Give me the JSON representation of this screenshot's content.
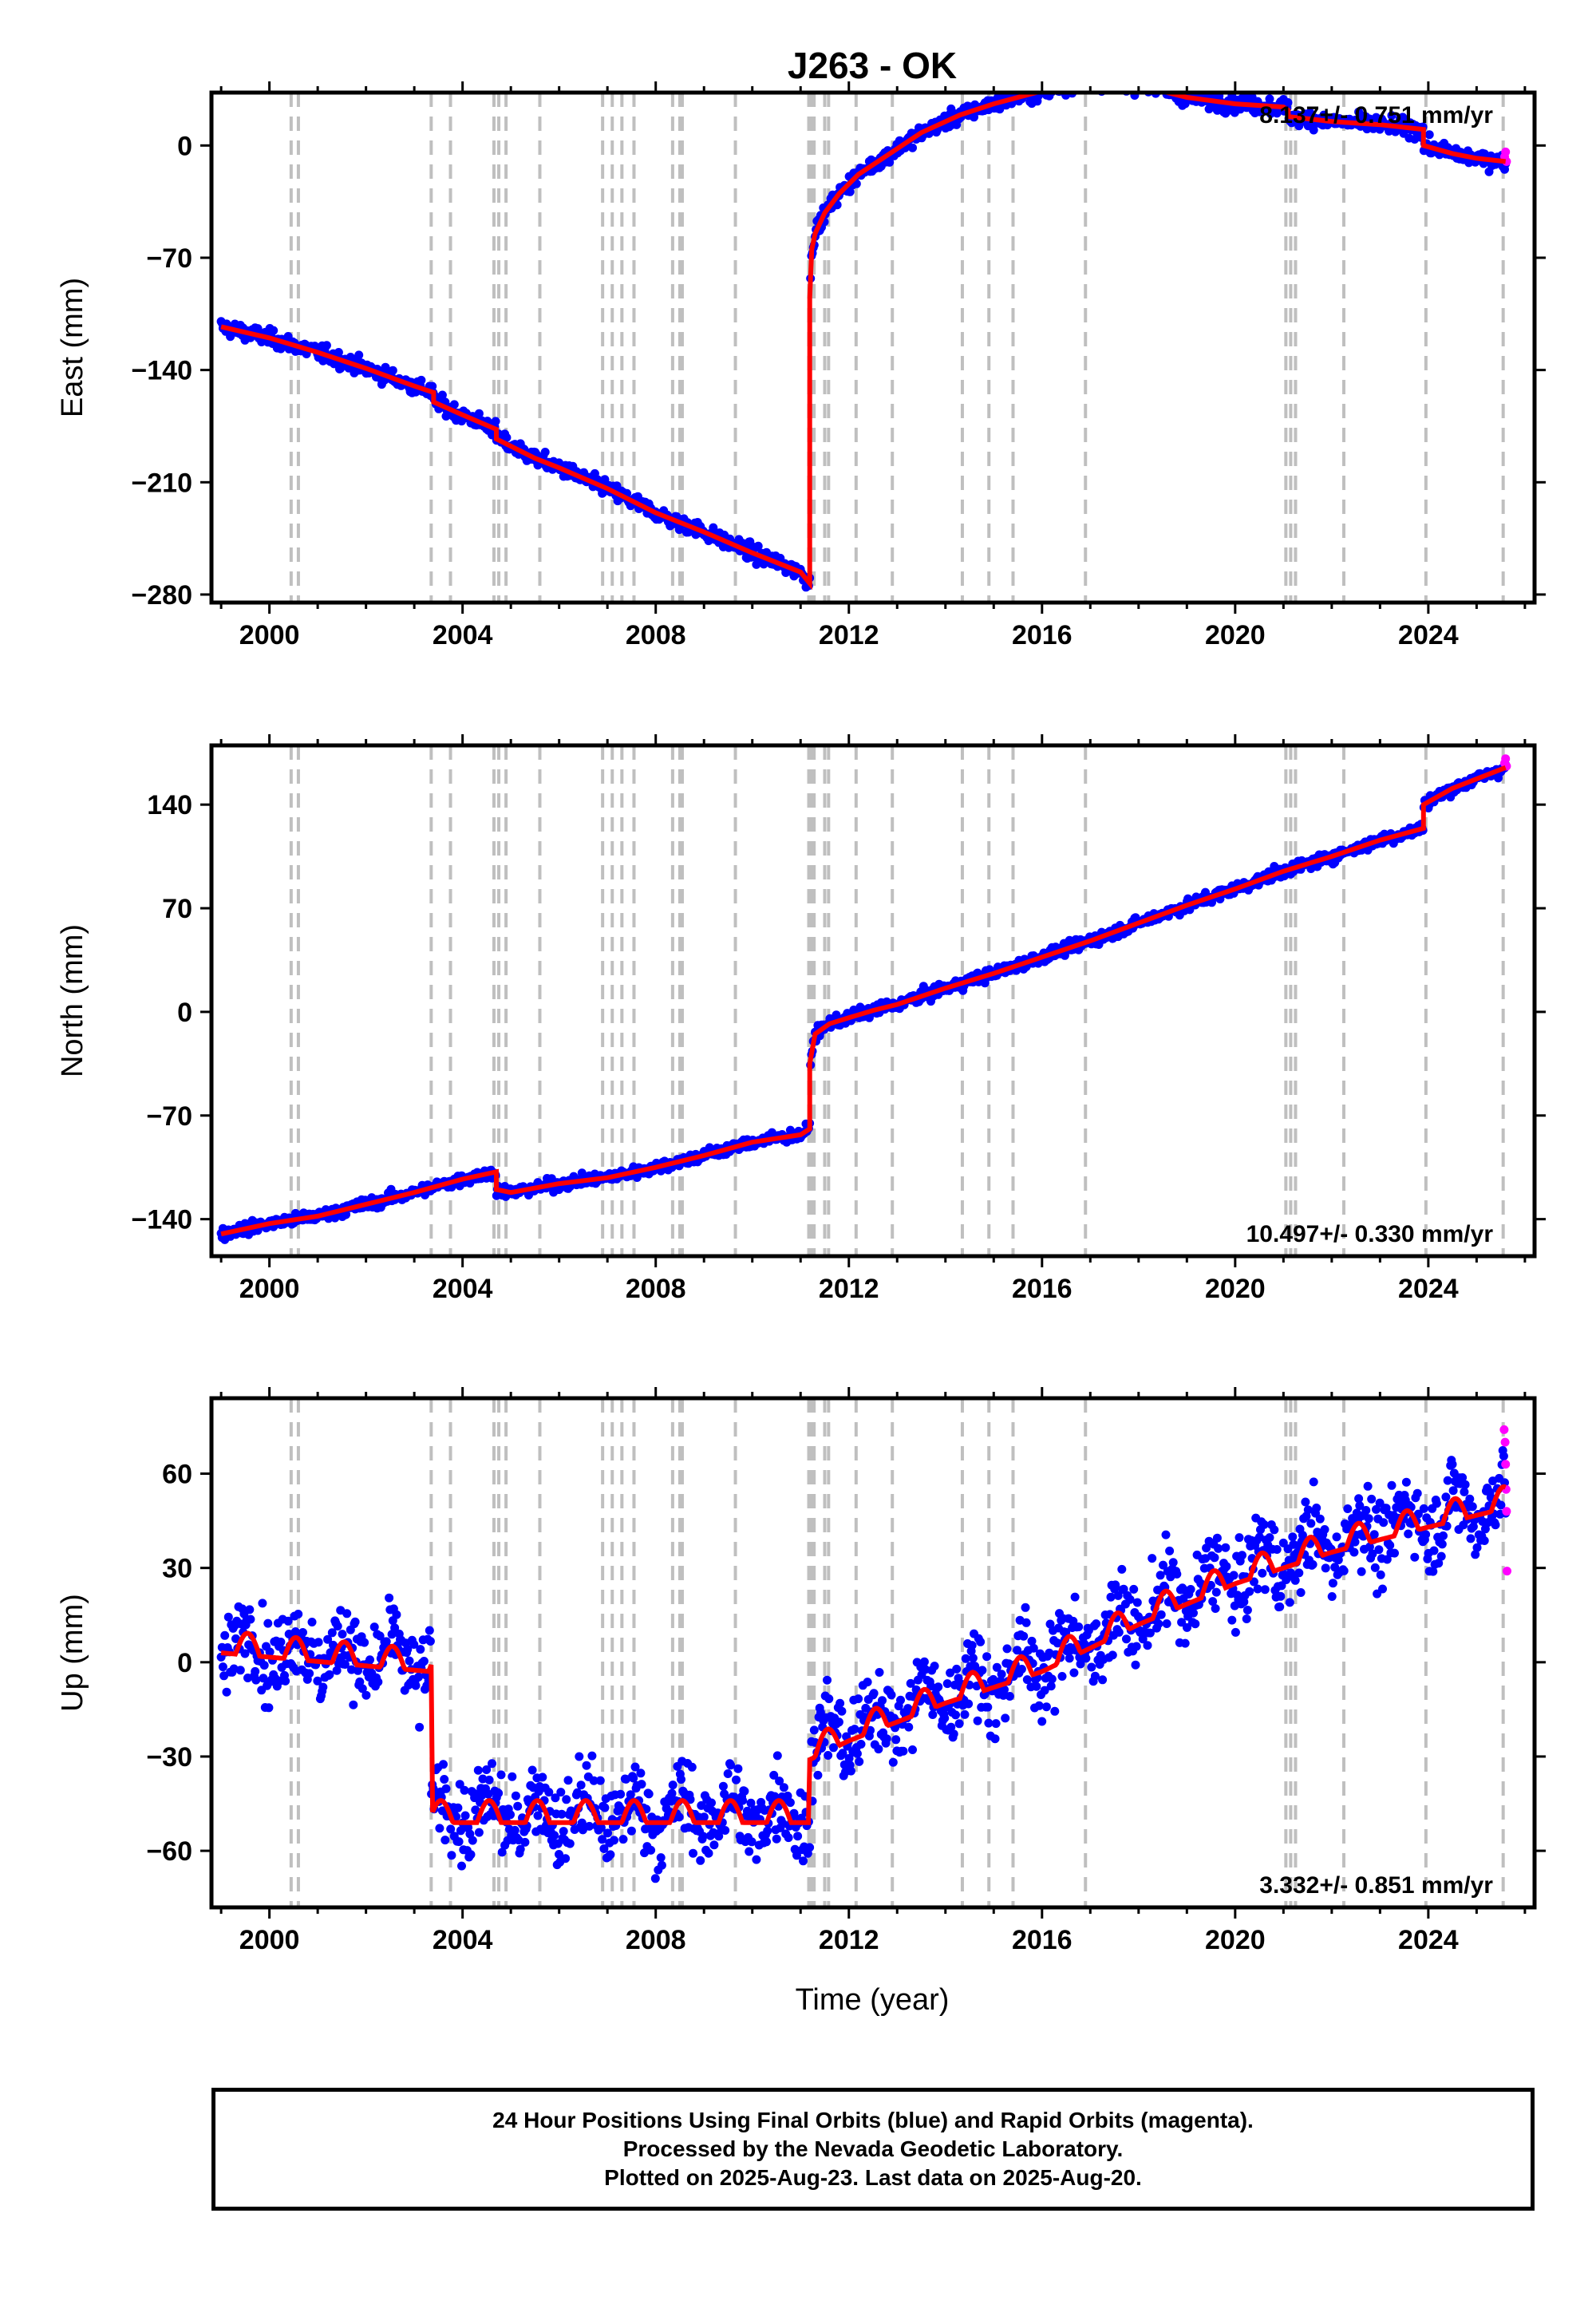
{
  "title": "J263 - OK",
  "xlabel": "Time (year)",
  "colors": {
    "final_orbits": "#0000ff",
    "rapid_orbits": "#ff00ff",
    "model": "#ff0000",
    "steps": "#bfbfbf"
  },
  "notes": [
    "24 Hour Positions Using Final Orbits (blue) and Rapid Orbits (magenta).",
    "Processed by the Nevada Geodetic Laboratory.",
    "Plotted on 2025-Aug-23. Last data on 2025-Aug-20."
  ],
  "chart_data": [
    {
      "type": "scatter",
      "ylabel": "East (mm)",
      "velocity": "8.137+/- 0.751 mm/yr",
      "xlim": [
        1998.8,
        2026.2
      ],
      "ylim": [
        -285,
        33
      ],
      "xticks": [
        2000,
        2004,
        2008,
        2012,
        2016,
        2020,
        2024
      ],
      "yticks": [
        -280,
        -210,
        -140,
        -70,
        0
      ],
      "ytick_labels": [
        "−280",
        "−210",
        "−140",
        "−70",
        "0"
      ],
      "model": {
        "x": [
          1999.0,
          2000.0,
          2001.0,
          2002.0,
          2003.0,
          2003.4,
          2003.4,
          2004.0,
          2004.7,
          2004.7,
          2005.5,
          2006.0,
          2007.0,
          2008.0,
          2009.0,
          2010.0,
          2011.0,
          2011.19,
          2011.19,
          2011.23,
          2011.3,
          2011.5,
          2011.8,
          2012.2,
          2012.8,
          2013.5,
          2014.3,
          2015.0,
          2016.0,
          2017.0,
          2018.0,
          2018.6,
          2019.0,
          2020.0,
          2021.0,
          2021.1,
          2021.1,
          2022.0,
          2023.0,
          2023.9,
          2023.9,
          2024.5,
          2025.0,
          2025.6
        ],
        "y": [
          -113,
          -120,
          -129,
          -139,
          -150,
          -154,
          -160,
          -168,
          -177,
          -183,
          -195,
          -201,
          -214,
          -229,
          -241,
          -254,
          -266,
          -273,
          -95,
          -65,
          -55,
          -42,
          -30,
          -18,
          -6,
          8,
          19,
          26,
          34,
          40,
          39,
          33,
          30,
          26,
          24,
          22,
          18,
          15,
          13,
          10,
          0,
          -5,
          -8,
          -10
        ]
      },
      "scatter": {
        "noise": 3.5,
        "rapid_x": [
          2025.58,
          2025.6,
          2025.62
        ],
        "rapid_y": [
          -7,
          -4,
          -10
        ]
      }
    },
    {
      "type": "scatter",
      "ylabel": "North (mm)",
      "velocity": "10.497+/- 0.330 mm/yr",
      "xlim": [
        1998.8,
        2026.2
      ],
      "ylim": [
        -165,
        180
      ],
      "xticks": [
        2000,
        2004,
        2008,
        2012,
        2016,
        2020,
        2024
      ],
      "yticks": [
        -140,
        -70,
        0,
        70,
        140
      ],
      "ytick_labels": [
        "−140",
        "−70",
        "0",
        "70",
        "140"
      ],
      "model": {
        "x": [
          1999.0,
          2000.0,
          2001.0,
          2002.0,
          2003.0,
          2004.0,
          2004.7,
          2004.7,
          2005.0,
          2006.0,
          2007.0,
          2008.0,
          2009.0,
          2010.0,
          2011.0,
          2011.19,
          2011.19,
          2011.3,
          2011.6,
          2012.0,
          2012.5,
          2013.0,
          2014.0,
          2015.0,
          2016.0,
          2017.0,
          2018.0,
          2019.0,
          2020.0,
          2021.0,
          2022.0,
          2023.0,
          2023.9,
          2023.9,
          2024.5,
          2025.6
        ],
        "y": [
          -150,
          -143,
          -138,
          -130,
          -122,
          -113,
          -108,
          -120,
          -122,
          -116,
          -112,
          -105,
          -97,
          -88,
          -83,
          -79,
          -35,
          -15,
          -8,
          -4,
          1,
          5,
          16,
          26,
          37,
          48,
          60,
          72,
          83,
          95,
          105,
          116,
          124,
          140,
          151,
          165
        ]
      },
      "scatter": {
        "noise": 2.8,
        "rapid_x": [
          2025.58,
          2025.6,
          2025.62
        ],
        "rapid_y": [
          168,
          171,
          166
        ]
      }
    },
    {
      "type": "scatter",
      "ylabel": "Up (mm)",
      "velocity": "3.332+/- 0.851 mm/yr",
      "xlim": [
        1998.8,
        2026.2
      ],
      "ylim": [
        -78,
        84
      ],
      "xticks": [
        2000,
        2004,
        2008,
        2012,
        2016,
        2020,
        2024
      ],
      "yticks": [
        -60,
        -30,
        0,
        30,
        60
      ],
      "ytick_labels": [
        "−60",
        "−30",
        "0",
        "30",
        "60"
      ],
      "model": {
        "x": [
          1999.0,
          2003.35,
          2003.35,
          2011.19,
          2011.19,
          2012.0,
          2014.0,
          2016.0,
          2018.0,
          2020.0,
          2022.0,
          2024.0,
          2025.6
        ],
        "y": [
          6,
          0,
          -48,
          -48,
          -28,
          -22,
          -10,
          0,
          15,
          28,
          38,
          46,
          52
        ]
      },
      "scatter": {
        "noise": 9,
        "rapid_x": [
          2025.57,
          2025.59,
          2025.6,
          2025.61,
          2025.62,
          2025.63
        ],
        "rapid_y": [
          74,
          70,
          63,
          55,
          48,
          29
        ]
      }
    }
  ],
  "steps": [
    2000.45,
    2000.6,
    2003.35,
    2003.75,
    2004.65,
    2004.75,
    2004.9,
    2005.6,
    2006.9,
    2007.1,
    2007.3,
    2007.55,
    2008.35,
    2008.5,
    2008.55,
    2009.65,
    2011.17,
    2011.22,
    2011.28,
    2011.5,
    2011.58,
    2012.15,
    2012.9,
    2014.35,
    2014.9,
    2015.4,
    2016.9,
    2021.05,
    2021.15,
    2021.25,
    2022.25,
    2023.95,
    2025.55
  ]
}
